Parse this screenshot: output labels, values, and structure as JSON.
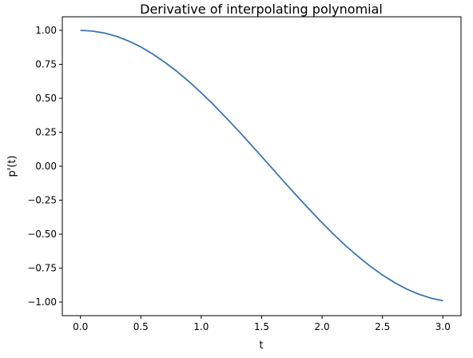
{
  "chart_data": {
    "type": "line",
    "title": "Derivative of interpolating polynomial",
    "xlabel": "t",
    "ylabel": "p'(t)",
    "xlim": [
      -0.15,
      3.15
    ],
    "ylim": [
      -1.1,
      1.1
    ],
    "x_ticks": [
      0.0,
      0.5,
      1.0,
      1.5,
      2.0,
      2.5,
      3.0
    ],
    "x_tick_labels": [
      "0.0",
      "0.5",
      "1.0",
      "1.5",
      "2.0",
      "2.5",
      "3.0"
    ],
    "y_ticks": [
      1.0,
      0.75,
      0.5,
      0.25,
      0.0,
      -0.25,
      -0.5,
      -0.75,
      -1.0
    ],
    "y_tick_labels": [
      "1.00",
      "0.75",
      "0.50",
      "0.25",
      "0.00",
      "−0.25",
      "−0.50",
      "−0.75",
      "−1.00"
    ],
    "grid": false,
    "series": [
      {
        "color": "#3a75b0",
        "x": [
          0.0,
          0.1,
          0.2,
          0.3,
          0.4,
          0.5,
          0.6,
          0.7,
          0.8,
          0.9,
          1.0,
          1.1,
          1.2,
          1.3,
          1.4,
          1.5,
          1.6,
          1.7,
          1.8,
          1.9,
          2.0,
          2.1,
          2.2,
          2.3,
          2.4,
          2.5,
          2.6,
          2.7,
          2.8,
          2.9,
          3.0
        ],
        "y": [
          1.0,
          0.995,
          0.98,
          0.956,
          0.921,
          0.878,
          0.825,
          0.764,
          0.697,
          0.622,
          0.54,
          0.454,
          0.362,
          0.268,
          0.17,
          0.071,
          -0.029,
          -0.129,
          -0.227,
          -0.323,
          -0.416,
          -0.505,
          -0.589,
          -0.666,
          -0.737,
          -0.801,
          -0.857,
          -0.904,
          -0.942,
          -0.971,
          -0.99
        ]
      }
    ]
  }
}
